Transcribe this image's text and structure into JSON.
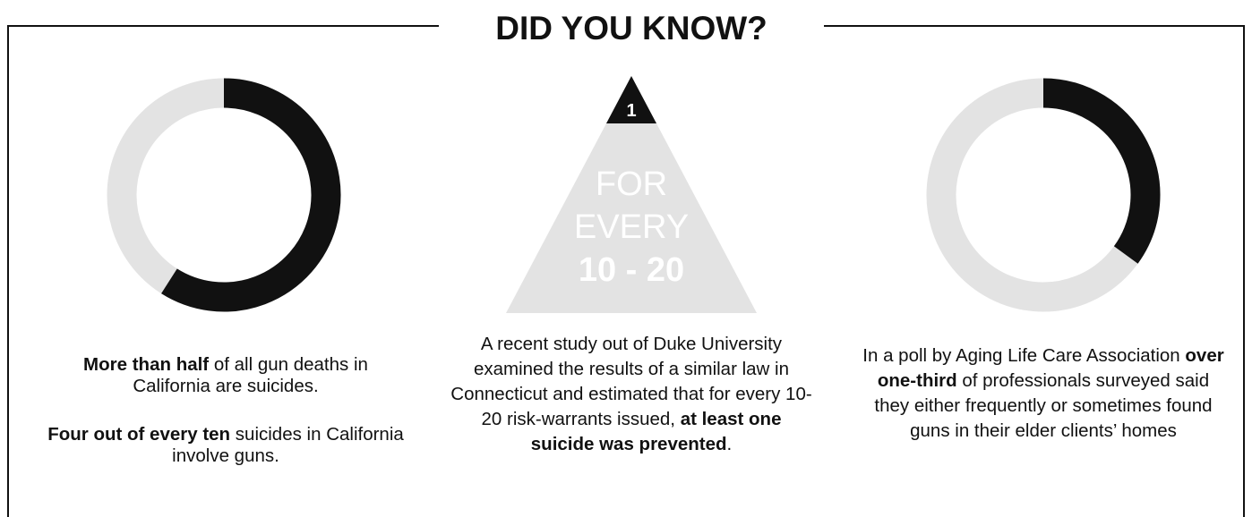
{
  "header": {
    "title": "DID YOU KNOW?"
  },
  "panels": [
    {
      "donut_value": 59,
      "paragraphs": [
        {
          "runs": [
            {
              "text": "More than half",
              "bold": true
            },
            {
              "text": " of all gun deaths in California are suicides.",
              "bold": false
            }
          ]
        },
        {
          "runs": [
            {
              "text": "Four out of every ten",
              "bold": true
            },
            {
              "text": " suicides in California involve guns.",
              "bold": false
            }
          ]
        }
      ]
    },
    {
      "triangle": {
        "rank": "1",
        "lines": [
          "FOR",
          "EVERY",
          "10 - 20"
        ]
      },
      "paragraphs": [
        {
          "runs": [
            {
              "text": "A recent study out of Duke University examined the results of a similar law in Connecticut and estimated that for every 10-20 risk-warrants issued, ",
              "bold": false
            },
            {
              "text": "at least one suicide was prevented",
              "bold": true
            },
            {
              "text": ".",
              "bold": false
            }
          ]
        }
      ]
    },
    {
      "donut_value": 35,
      "paragraphs": [
        {
          "runs": [
            {
              "text": "In a poll by Aging Life Care Association ",
              "bold": false
            },
            {
              "text": "over one-third",
              "bold": true
            },
            {
              "text": " of professionals surveyed said they either frequently or sometimes found guns in their elder clients’ homes",
              "bold": false
            }
          ]
        }
      ]
    }
  ]
}
